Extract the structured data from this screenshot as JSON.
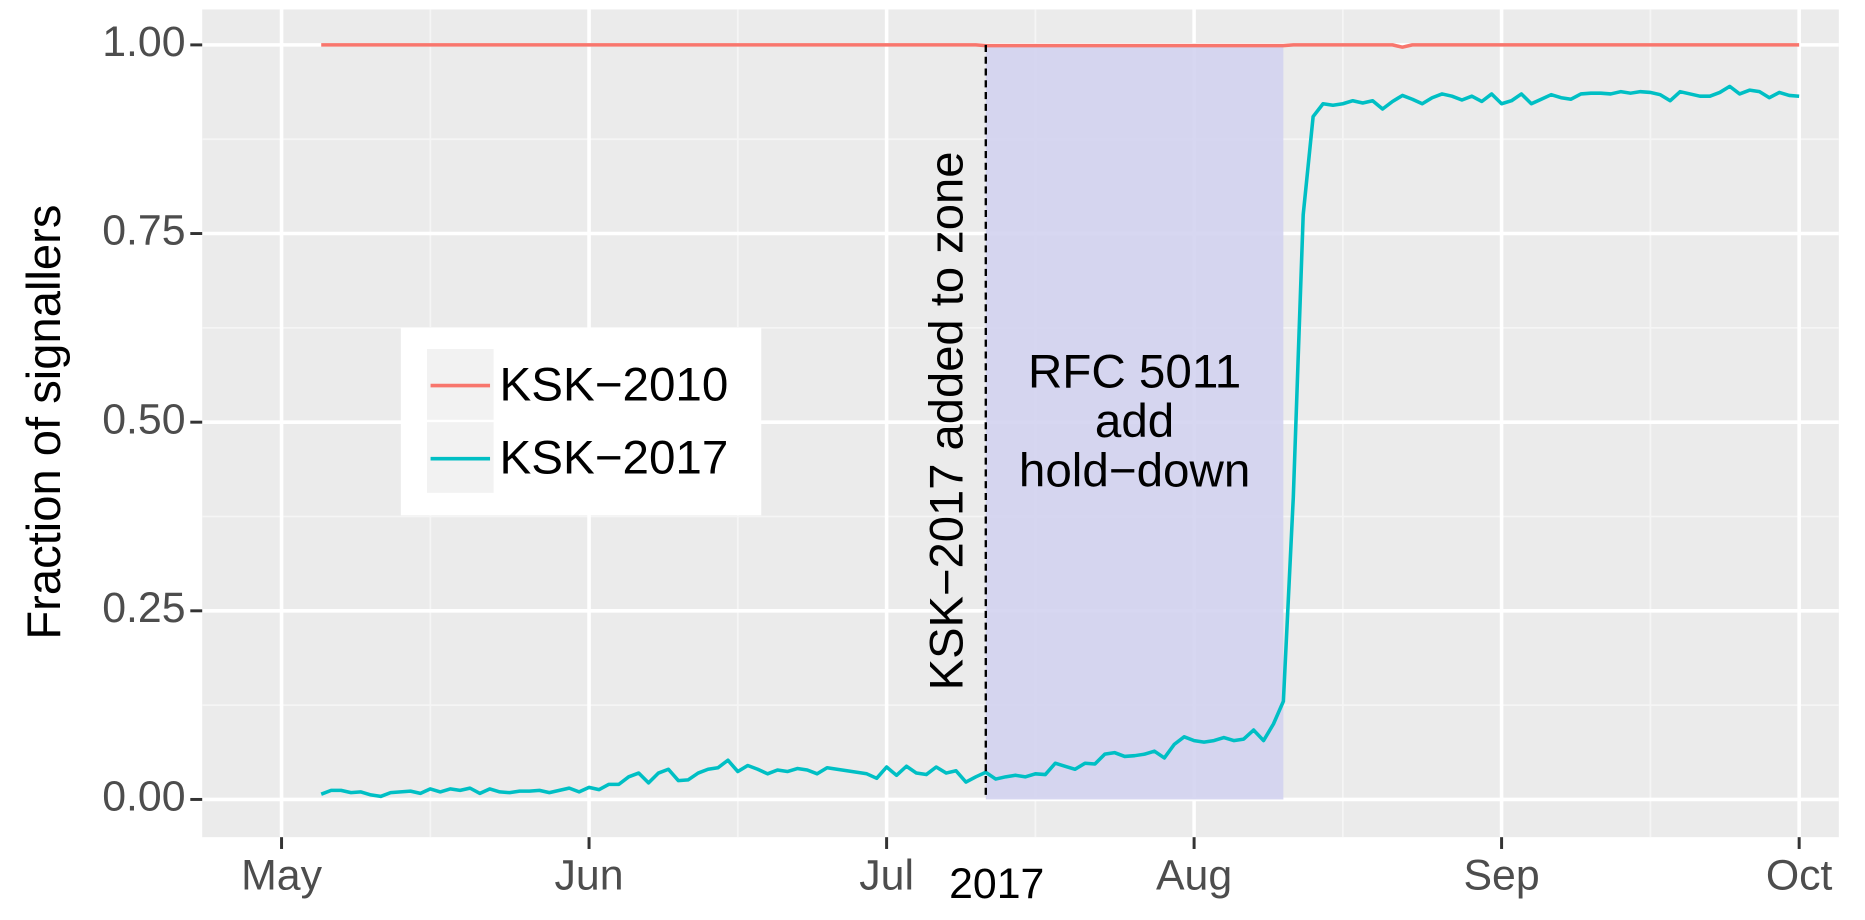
{
  "chart_data": {
    "type": "line",
    "x": [
      "2017-05-05",
      "2017-05-06",
      "2017-05-07",
      "2017-05-08",
      "2017-05-09",
      "2017-05-10",
      "2017-05-11",
      "2017-05-12",
      "2017-05-13",
      "2017-05-14",
      "2017-05-15",
      "2017-05-16",
      "2017-05-17",
      "2017-05-18",
      "2017-05-19",
      "2017-05-20",
      "2017-05-21",
      "2017-05-22",
      "2017-05-23",
      "2017-05-24",
      "2017-05-25",
      "2017-05-26",
      "2017-05-27",
      "2017-05-28",
      "2017-05-29",
      "2017-05-30",
      "2017-05-31",
      "2017-06-01",
      "2017-06-02",
      "2017-06-03",
      "2017-06-04",
      "2017-06-05",
      "2017-06-06",
      "2017-06-07",
      "2017-06-08",
      "2017-06-09",
      "2017-06-10",
      "2017-06-11",
      "2017-06-12",
      "2017-06-13",
      "2017-06-14",
      "2017-06-15",
      "2017-06-16",
      "2017-06-17",
      "2017-06-18",
      "2017-06-19",
      "2017-06-20",
      "2017-06-21",
      "2017-06-22",
      "2017-06-23",
      "2017-06-24",
      "2017-06-25",
      "2017-06-26",
      "2017-06-27",
      "2017-06-28",
      "2017-06-29",
      "2017-06-30",
      "2017-07-01",
      "2017-07-02",
      "2017-07-03",
      "2017-07-04",
      "2017-07-05",
      "2017-07-06",
      "2017-07-07",
      "2017-07-08",
      "2017-07-09",
      "2017-07-10",
      "2017-07-11",
      "2017-07-12",
      "2017-07-13",
      "2017-07-14",
      "2017-07-15",
      "2017-07-16",
      "2017-07-17",
      "2017-07-18",
      "2017-07-19",
      "2017-07-20",
      "2017-07-21",
      "2017-07-22",
      "2017-07-23",
      "2017-07-24",
      "2017-07-25",
      "2017-07-26",
      "2017-07-27",
      "2017-07-28",
      "2017-07-29",
      "2017-07-30",
      "2017-07-31",
      "2017-08-01",
      "2017-08-02",
      "2017-08-03",
      "2017-08-04",
      "2017-08-05",
      "2017-08-06",
      "2017-08-07",
      "2017-08-08",
      "2017-08-09",
      "2017-08-10",
      "2017-08-11",
      "2017-08-12",
      "2017-08-13",
      "2017-08-14",
      "2017-08-15",
      "2017-08-16",
      "2017-08-17",
      "2017-08-18",
      "2017-08-19",
      "2017-08-20",
      "2017-08-21",
      "2017-08-22",
      "2017-08-23",
      "2017-08-24",
      "2017-08-25",
      "2017-08-26",
      "2017-08-27",
      "2017-08-28",
      "2017-08-29",
      "2017-08-30",
      "2017-08-31",
      "2017-09-01",
      "2017-09-02",
      "2017-09-03",
      "2017-09-04",
      "2017-09-05",
      "2017-09-06",
      "2017-09-07",
      "2017-09-08",
      "2017-09-09",
      "2017-09-10",
      "2017-09-11",
      "2017-09-12",
      "2017-09-13",
      "2017-09-14",
      "2017-09-15",
      "2017-09-16",
      "2017-09-17",
      "2017-09-18",
      "2017-09-19",
      "2017-09-20",
      "2017-09-21",
      "2017-09-22",
      "2017-09-23",
      "2017-09-24",
      "2017-09-25",
      "2017-09-26",
      "2017-09-27",
      "2017-09-28",
      "2017-09-29",
      "2017-09-30",
      "2017-10-01"
    ],
    "series": [
      {
        "name": "KSK−2010",
        "color": "#F8766D",
        "values": [
          1,
          1,
          1,
          1,
          1,
          1,
          1,
          1,
          1,
          1,
          1,
          1,
          1,
          1,
          1,
          1,
          1,
          1,
          1,
          1,
          1,
          1,
          1,
          1,
          1,
          1,
          1,
          1,
          1,
          1,
          1,
          1,
          1,
          1,
          1,
          1,
          1,
          1,
          1,
          1,
          1,
          1,
          1,
          1,
          1,
          1,
          1,
          1,
          1,
          1,
          1,
          1,
          1,
          1,
          1,
          1,
          1,
          1,
          1,
          1,
          1,
          1,
          1,
          1,
          1,
          1,
          1,
          0.999,
          0.999,
          0.999,
          0.999,
          0.999,
          0.999,
          0.999,
          0.999,
          0.999,
          0.999,
          0.999,
          0.999,
          0.999,
          0.999,
          0.999,
          0.999,
          0.999,
          0.999,
          0.999,
          0.999,
          0.999,
          0.999,
          0.999,
          0.999,
          0.999,
          0.999,
          0.999,
          0.999,
          0.999,
          0.999,
          0.999,
          1,
          1,
          1,
          1,
          1,
          1,
          1,
          1,
          1,
          1,
          1,
          0.997,
          1,
          1,
          1,
          1,
          1,
          1,
          1,
          1,
          1,
          1,
          1,
          1,
          1,
          1,
          1,
          1,
          1,
          1,
          1,
          1,
          1,
          1,
          1,
          1,
          1,
          1,
          1,
          1,
          1,
          1,
          1,
          1,
          1,
          1,
          1,
          1,
          1,
          1,
          1,
          1
        ]
      },
      {
        "name": "KSK−2017",
        "color": "#00BFC4",
        "values": [
          0.007,
          0.012,
          0.012,
          0.009,
          0.01,
          0.006,
          0.004,
          0.009,
          0.01,
          0.011,
          0.008,
          0.014,
          0.01,
          0.014,
          0.012,
          0.015,
          0.008,
          0.014,
          0.01,
          0.009,
          0.011,
          0.011,
          0.012,
          0.009,
          0.012,
          0.015,
          0.01,
          0.016,
          0.013,
          0.02,
          0.02,
          0.03,
          0.035,
          0.022,
          0.035,
          0.04,
          0.025,
          0.026,
          0.035,
          0.04,
          0.042,
          0.052,
          0.037,
          0.045,
          0.04,
          0.034,
          0.039,
          0.037,
          0.041,
          0.039,
          0.034,
          0.042,
          0.04,
          0.038,
          0.036,
          0.034,
          0.028,
          0.043,
          0.032,
          0.044,
          0.035,
          0.033,
          0.043,
          0.035,
          0.038,
          0.023,
          0.03,
          0.036,
          0.027,
          0.03,
          0.032,
          0.03,
          0.034,
          0.033,
          0.048,
          0.044,
          0.04,
          0.048,
          0.047,
          0.06,
          0.062,
          0.057,
          0.058,
          0.06,
          0.064,
          0.055,
          0.073,
          0.083,
          0.078,
          0.076,
          0.078,
          0.082,
          0.078,
          0.08,
          0.092,
          0.078,
          0.1,
          0.13,
          0.4,
          0.775,
          0.905,
          0.922,
          0.92,
          0.922,
          0.926,
          0.923,
          0.926,
          0.915,
          0.925,
          0.933,
          0.928,
          0.922,
          0.93,
          0.935,
          0.932,
          0.927,
          0.932,
          0.925,
          0.935,
          0.922,
          0.926,
          0.935,
          0.922,
          0.928,
          0.934,
          0.93,
          0.928,
          0.935,
          0.936,
          0.936,
          0.935,
          0.938,
          0.936,
          0.938,
          0.937,
          0.934,
          0.926,
          0.938,
          0.935,
          0.932,
          0.932,
          0.937,
          0.945,
          0.935,
          0.94,
          0.938,
          0.93,
          0.937,
          0.933,
          0.932
        ]
      }
    ],
    "ylabel": "Fraction of signallers",
    "xlabel_year": "2017",
    "xlim": [
      "2017-04-23",
      "2017-10-05"
    ],
    "xticks": [
      {
        "value": "2017-05-01",
        "label": "May"
      },
      {
        "value": "2017-06-01",
        "label": "Jun"
      },
      {
        "value": "2017-07-01",
        "label": "Jul"
      },
      {
        "value": "2017-08-01",
        "label": "Aug"
      },
      {
        "value": "2017-09-01",
        "label": "Sep"
      },
      {
        "value": "2017-10-01",
        "label": "Oct"
      }
    ],
    "minor_xticks": [
      "2017-05-16",
      "2017-06-16",
      "2017-07-16",
      "2017-08-16",
      "2017-09-16"
    ],
    "ylim": [
      -0.05,
      1.047
    ],
    "yticks": [
      {
        "value": 0,
        "label": "0.00"
      },
      {
        "value": 0.25,
        "label": "0.25"
      },
      {
        "value": 0.5,
        "label": "0.50"
      },
      {
        "value": 0.75,
        "label": "0.75"
      },
      {
        "value": 1,
        "label": "1.00"
      }
    ],
    "minor_yticks": [
      0.125,
      0.375,
      0.625,
      0.875
    ],
    "grid": true,
    "legend": "left",
    "annotations": {
      "vline": {
        "x": "2017-07-11",
        "text": "KSK−2017 added to zone"
      },
      "shade": {
        "x": [
          "2017-07-11",
          "2017-08-10"
        ],
        "color": "#d3d3ef",
        "lines": [
          "RFC 5011",
          "add",
          "hold−down"
        ]
      }
    }
  }
}
